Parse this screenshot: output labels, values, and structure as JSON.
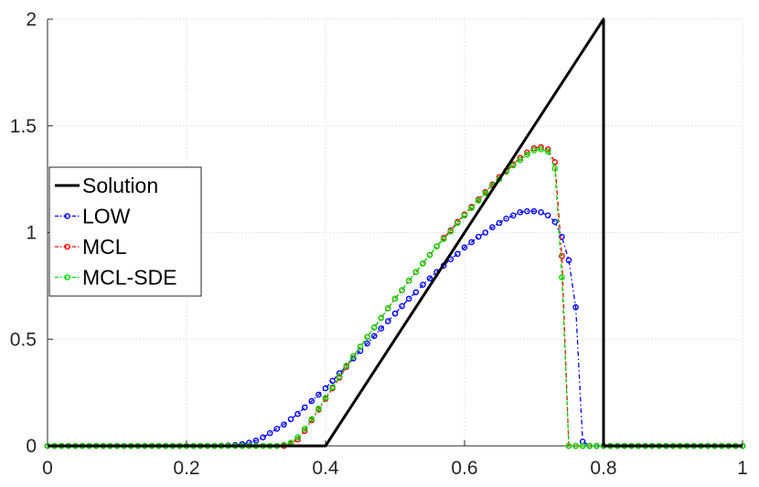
{
  "chart_data": {
    "type": "line",
    "title": "",
    "xlabel": "",
    "ylabel": "",
    "xlim": [
      0,
      1
    ],
    "ylim": [
      0,
      2
    ],
    "xticks": [
      "0",
      "0.2",
      "0.4",
      "0.6",
      "0.8",
      "1"
    ],
    "yticks": [
      "0",
      "0.5",
      "1",
      "1.5",
      "2"
    ],
    "grid": true,
    "legend_position": "center-left",
    "series": [
      {
        "name": "Solution",
        "color": "#000000",
        "style": "solid",
        "marker": "none",
        "x": [
          0,
          0.4,
          0.8,
          0.8,
          1
        ],
        "y": [
          0,
          0,
          2,
          0,
          0
        ]
      },
      {
        "name": "LOW",
        "color": "#0000ff",
        "style": "dash-dot",
        "marker": "circle",
        "x": [
          0.0,
          0.01,
          0.02,
          0.03,
          0.04,
          0.05,
          0.06,
          0.07,
          0.08,
          0.09,
          0.1,
          0.11,
          0.12,
          0.13,
          0.14,
          0.15,
          0.16,
          0.17,
          0.18,
          0.19,
          0.2,
          0.21,
          0.22,
          0.23,
          0.24,
          0.25,
          0.26,
          0.27,
          0.28,
          0.29,
          0.3,
          0.31,
          0.32,
          0.33,
          0.34,
          0.35,
          0.36,
          0.37,
          0.38,
          0.39,
          0.4,
          0.41,
          0.42,
          0.43,
          0.44,
          0.45,
          0.46,
          0.47,
          0.48,
          0.49,
          0.5,
          0.51,
          0.52,
          0.53,
          0.54,
          0.55,
          0.56,
          0.57,
          0.58,
          0.59,
          0.6,
          0.61,
          0.62,
          0.63,
          0.64,
          0.65,
          0.66,
          0.67,
          0.68,
          0.69,
          0.7,
          0.71,
          0.72,
          0.73,
          0.74,
          0.75,
          0.76,
          0.77,
          0.78,
          0.79,
          0.8,
          0.81,
          0.82,
          0.83,
          0.84,
          0.85,
          0.86,
          0.87,
          0.88,
          0.89,
          0.9,
          0.91,
          0.92,
          0.93,
          0.94,
          0.95,
          0.96,
          0.97,
          0.98,
          0.99,
          1.0
        ],
        "y": [
          0,
          0,
          0,
          0,
          0,
          0,
          0,
          0,
          0,
          0,
          0,
          0,
          0,
          0,
          0,
          0,
          0,
          0,
          0,
          0,
          0,
          0,
          0,
          0,
          0,
          0.001,
          0.002,
          0.004,
          0.008,
          0.015,
          0.025,
          0.04,
          0.06,
          0.08,
          0.1,
          0.125,
          0.15,
          0.18,
          0.21,
          0.24,
          0.27,
          0.305,
          0.34,
          0.375,
          0.41,
          0.445,
          0.48,
          0.515,
          0.55,
          0.585,
          0.62,
          0.655,
          0.69,
          0.72,
          0.755,
          0.785,
          0.815,
          0.845,
          0.875,
          0.9,
          0.93,
          0.955,
          0.98,
          1.0,
          1.025,
          1.045,
          1.065,
          1.08,
          1.095,
          1.1,
          1.1,
          1.095,
          1.08,
          1.05,
          0.98,
          0.87,
          0.65,
          0.02,
          0,
          0,
          0,
          0,
          0,
          0,
          0,
          0,
          0,
          0,
          0,
          0,
          0,
          0,
          0,
          0,
          0,
          0,
          0,
          0,
          0,
          0,
          0
        ]
      },
      {
        "name": "MCL",
        "color": "#ff0000",
        "style": "dash-dot",
        "marker": "circle",
        "x": [
          0.0,
          0.01,
          0.02,
          0.03,
          0.04,
          0.05,
          0.06,
          0.07,
          0.08,
          0.09,
          0.1,
          0.11,
          0.12,
          0.13,
          0.14,
          0.15,
          0.16,
          0.17,
          0.18,
          0.19,
          0.2,
          0.21,
          0.22,
          0.23,
          0.24,
          0.25,
          0.26,
          0.27,
          0.28,
          0.29,
          0.3,
          0.31,
          0.32,
          0.33,
          0.34,
          0.35,
          0.36,
          0.37,
          0.38,
          0.39,
          0.4,
          0.41,
          0.42,
          0.43,
          0.44,
          0.45,
          0.46,
          0.47,
          0.48,
          0.49,
          0.5,
          0.51,
          0.52,
          0.53,
          0.54,
          0.55,
          0.56,
          0.57,
          0.58,
          0.59,
          0.6,
          0.61,
          0.62,
          0.63,
          0.64,
          0.65,
          0.66,
          0.67,
          0.68,
          0.69,
          0.7,
          0.71,
          0.72,
          0.73,
          0.74,
          0.75,
          0.76,
          0.77,
          0.78,
          0.79,
          0.8,
          0.81,
          0.82,
          0.83,
          0.84,
          0.85,
          0.86,
          0.87,
          0.88,
          0.89,
          0.9,
          0.91,
          0.92,
          0.93,
          0.94,
          0.95,
          0.96,
          0.97,
          0.98,
          0.99,
          1.0
        ],
        "y": [
          0,
          0,
          0,
          0,
          0,
          0,
          0,
          0,
          0,
          0,
          0,
          0,
          0,
          0,
          0,
          0,
          0,
          0,
          0,
          0,
          0,
          0,
          0,
          0,
          0,
          0,
          0,
          0,
          0,
          0,
          0,
          0,
          0,
          0,
          0,
          0.01,
          0.03,
          0.07,
          0.12,
          0.17,
          0.22,
          0.27,
          0.32,
          0.37,
          0.42,
          0.465,
          0.51,
          0.555,
          0.6,
          0.645,
          0.69,
          0.73,
          0.775,
          0.815,
          0.855,
          0.895,
          0.935,
          0.975,
          1.01,
          1.05,
          1.085,
          1.12,
          1.155,
          1.19,
          1.225,
          1.26,
          1.29,
          1.32,
          1.35,
          1.375,
          1.395,
          1.4,
          1.39,
          1.33,
          0.89,
          0,
          0,
          0,
          0,
          0,
          0,
          0,
          0,
          0,
          0,
          0,
          0,
          0,
          0,
          0,
          0,
          0,
          0,
          0,
          0,
          0,
          0,
          0,
          0,
          0,
          0
        ]
      },
      {
        "name": "MCL-SDE",
        "color": "#00dd00",
        "style": "dash-dot",
        "marker": "circle",
        "x": [
          0.0,
          0.01,
          0.02,
          0.03,
          0.04,
          0.05,
          0.06,
          0.07,
          0.08,
          0.09,
          0.1,
          0.11,
          0.12,
          0.13,
          0.14,
          0.15,
          0.16,
          0.17,
          0.18,
          0.19,
          0.2,
          0.21,
          0.22,
          0.23,
          0.24,
          0.25,
          0.26,
          0.27,
          0.28,
          0.29,
          0.3,
          0.31,
          0.32,
          0.33,
          0.34,
          0.35,
          0.36,
          0.37,
          0.38,
          0.39,
          0.4,
          0.41,
          0.42,
          0.43,
          0.44,
          0.45,
          0.46,
          0.47,
          0.48,
          0.49,
          0.5,
          0.51,
          0.52,
          0.53,
          0.54,
          0.55,
          0.56,
          0.57,
          0.58,
          0.59,
          0.6,
          0.61,
          0.62,
          0.63,
          0.64,
          0.65,
          0.66,
          0.67,
          0.68,
          0.69,
          0.7,
          0.71,
          0.72,
          0.73,
          0.74,
          0.75,
          0.76,
          0.77,
          0.78,
          0.79,
          0.8,
          0.81,
          0.82,
          0.83,
          0.84,
          0.85,
          0.86,
          0.87,
          0.88,
          0.89,
          0.9,
          0.91,
          0.92,
          0.93,
          0.94,
          0.95,
          0.96,
          0.97,
          0.98,
          0.99,
          1.0
        ],
        "y": [
          0,
          0,
          0,
          0,
          0,
          0,
          0,
          0,
          0,
          0,
          0,
          0,
          0,
          0,
          0,
          0,
          0,
          0,
          0,
          0,
          0,
          0,
          0,
          0,
          0,
          0,
          0,
          0,
          0,
          0,
          0,
          0,
          0,
          0,
          0.005,
          0.015,
          0.04,
          0.08,
          0.125,
          0.175,
          0.225,
          0.275,
          0.325,
          0.375,
          0.42,
          0.465,
          0.51,
          0.555,
          0.6,
          0.645,
          0.69,
          0.73,
          0.775,
          0.815,
          0.855,
          0.895,
          0.935,
          0.97,
          1.005,
          1.045,
          1.08,
          1.115,
          1.15,
          1.185,
          1.22,
          1.25,
          1.285,
          1.315,
          1.34,
          1.365,
          1.385,
          1.39,
          1.38,
          1.3,
          0.79,
          0,
          0,
          0,
          0,
          0,
          0,
          0,
          0,
          0,
          0,
          0,
          0,
          0,
          0,
          0,
          0,
          0,
          0,
          0,
          0,
          0,
          0,
          0,
          0,
          0,
          0
        ]
      }
    ]
  }
}
